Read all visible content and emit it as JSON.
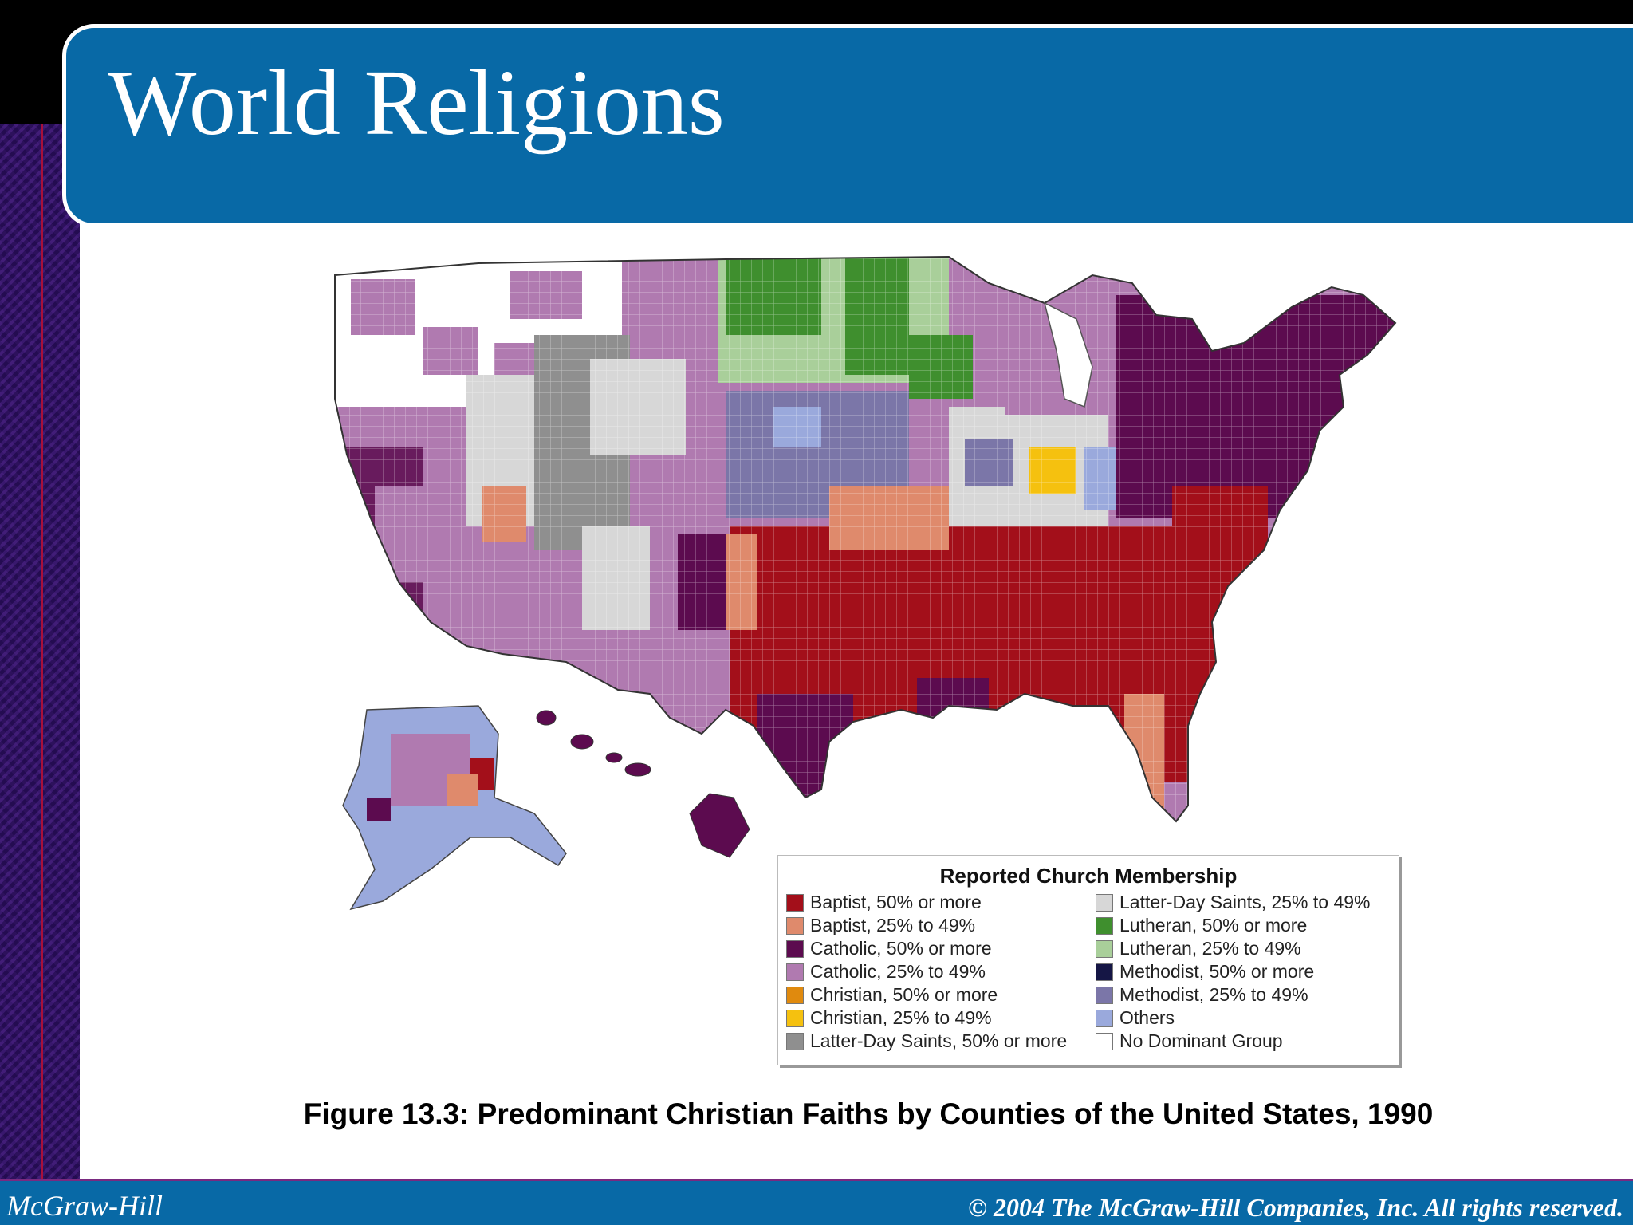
{
  "slide": {
    "title": "World Religions",
    "footer_left": "McGraw-Hill",
    "footer_right": "© 2004 The McGraw-Hill Companies, Inc. All rights reserved."
  },
  "legend": {
    "title": "Reported Church Membership",
    "items": [
      {
        "label": "Baptist, 50% or more",
        "color": "#a30f1a"
      },
      {
        "label": "Baptist, 25% to 49%",
        "color": "#df8a6c"
      },
      {
        "label": "Catholic, 50% or more",
        "color": "#5c0b4f"
      },
      {
        "label": "Catholic, 25% to 49%",
        "color": "#b07ab0"
      },
      {
        "label": "Christian, 50% or more",
        "color": "#e08a0e"
      },
      {
        "label": "Christian, 25% to 49%",
        "color": "#f5c10f"
      },
      {
        "label": "Latter-Day Saints, 50% or more",
        "color": "#8f8f8f"
      },
      {
        "label": "Latter-Day Saints, 25% to 49%",
        "color": "#d7d7d7"
      },
      {
        "label": "Lutheran, 50% or more",
        "color": "#3f8f2e"
      },
      {
        "label": "Lutheran, 25% to 49%",
        "color": "#a9cf9a"
      },
      {
        "label": "Methodist, 50% or more",
        "color": "#151645"
      },
      {
        "label": "Methodist, 25% to 49%",
        "color": "#7b76a8"
      },
      {
        "label": "Others",
        "color": "#9aa9dc"
      },
      {
        "label": "No Dominant Group",
        "color": "#ffffff"
      }
    ]
  },
  "caption": "Figure 13.3: Predominant Christian Faiths by Counties of the United States, 1990"
}
